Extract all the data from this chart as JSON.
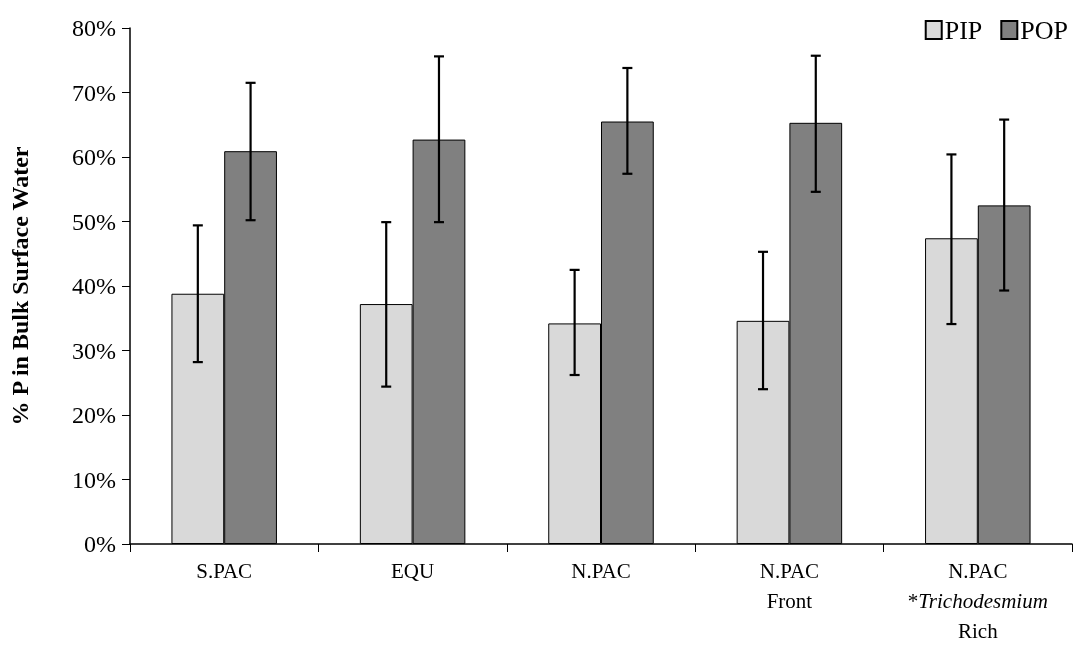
{
  "chart_data": {
    "type": "bar",
    "ylabel": "% P in Bulk Surface Water",
    "categories": [
      "S.PAC",
      "EQU",
      "N.PAC",
      "N.PAC\nFront",
      "N.PAC\n*Trichodesmium\nRich"
    ],
    "series": [
      {
        "name": "PIP",
        "color": "#d9d9d9",
        "values": [
          38.8,
          37.2,
          34.2,
          34.6,
          47.4
        ],
        "errors": [
          [
            28.2,
            49.4
          ],
          [
            24.4,
            49.9
          ],
          [
            26.2,
            42.5
          ],
          [
            24.0,
            45.3
          ],
          [
            34.1,
            60.4
          ]
        ]
      },
      {
        "name": "POP",
        "color": "#808080",
        "values": [
          60.9,
          62.7,
          65.5,
          65.3,
          52.5
        ],
        "errors": [
          [
            50.2,
            71.5
          ],
          [
            49.9,
            75.6
          ],
          [
            57.4,
            73.8
          ],
          [
            54.6,
            75.7
          ],
          [
            39.3,
            65.8
          ]
        ]
      }
    ],
    "ylim": [
      0,
      80
    ],
    "yticks": [
      {
        "value": 0,
        "label": "0%"
      },
      {
        "value": 10,
        "label": "10%"
      },
      {
        "value": 20,
        "label": "20%"
      },
      {
        "value": 30,
        "label": "30%"
      },
      {
        "value": 40,
        "label": "40%"
      },
      {
        "value": 50,
        "label": "50%"
      },
      {
        "value": 60,
        "label": "60%"
      },
      {
        "value": 70,
        "label": "70%"
      },
      {
        "value": 80,
        "label": "80%"
      }
    ],
    "grid": false,
    "legend": "top right"
  }
}
